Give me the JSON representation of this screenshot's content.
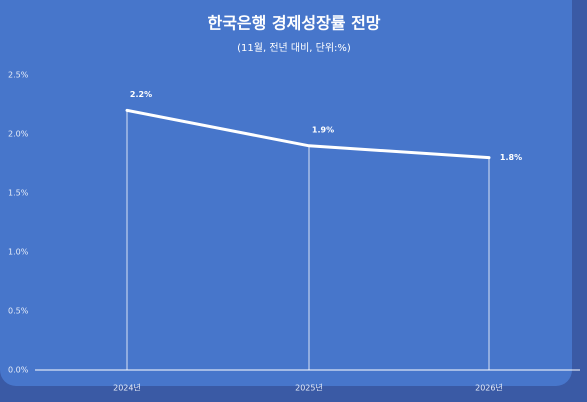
{
  "chart_data": {
    "type": "line",
    "title": "한국은행 경제성장률 전망",
    "subtitle": "(11월, 전년 대비, 단위:%)",
    "categories": [
      "2024년",
      "2025년",
      "2026년"
    ],
    "values": [
      2.2,
      1.9,
      1.8
    ],
    "value_labels": [
      "2.2%",
      "1.9%",
      "1.8%"
    ],
    "color": "#ffffff",
    "ylim": [
      0,
      2.5
    ],
    "yticks": [
      {
        "value": 0,
        "label": "0.0%"
      },
      {
        "value": 0.5,
        "label": "0.5%"
      },
      {
        "value": 1,
        "label": "1.0%"
      },
      {
        "value": 1.5,
        "label": "1.5%"
      },
      {
        "value": 2,
        "label": "2.0%"
      },
      {
        "value": 2.5,
        "label": "2.5%"
      }
    ],
    "grid": false
  }
}
